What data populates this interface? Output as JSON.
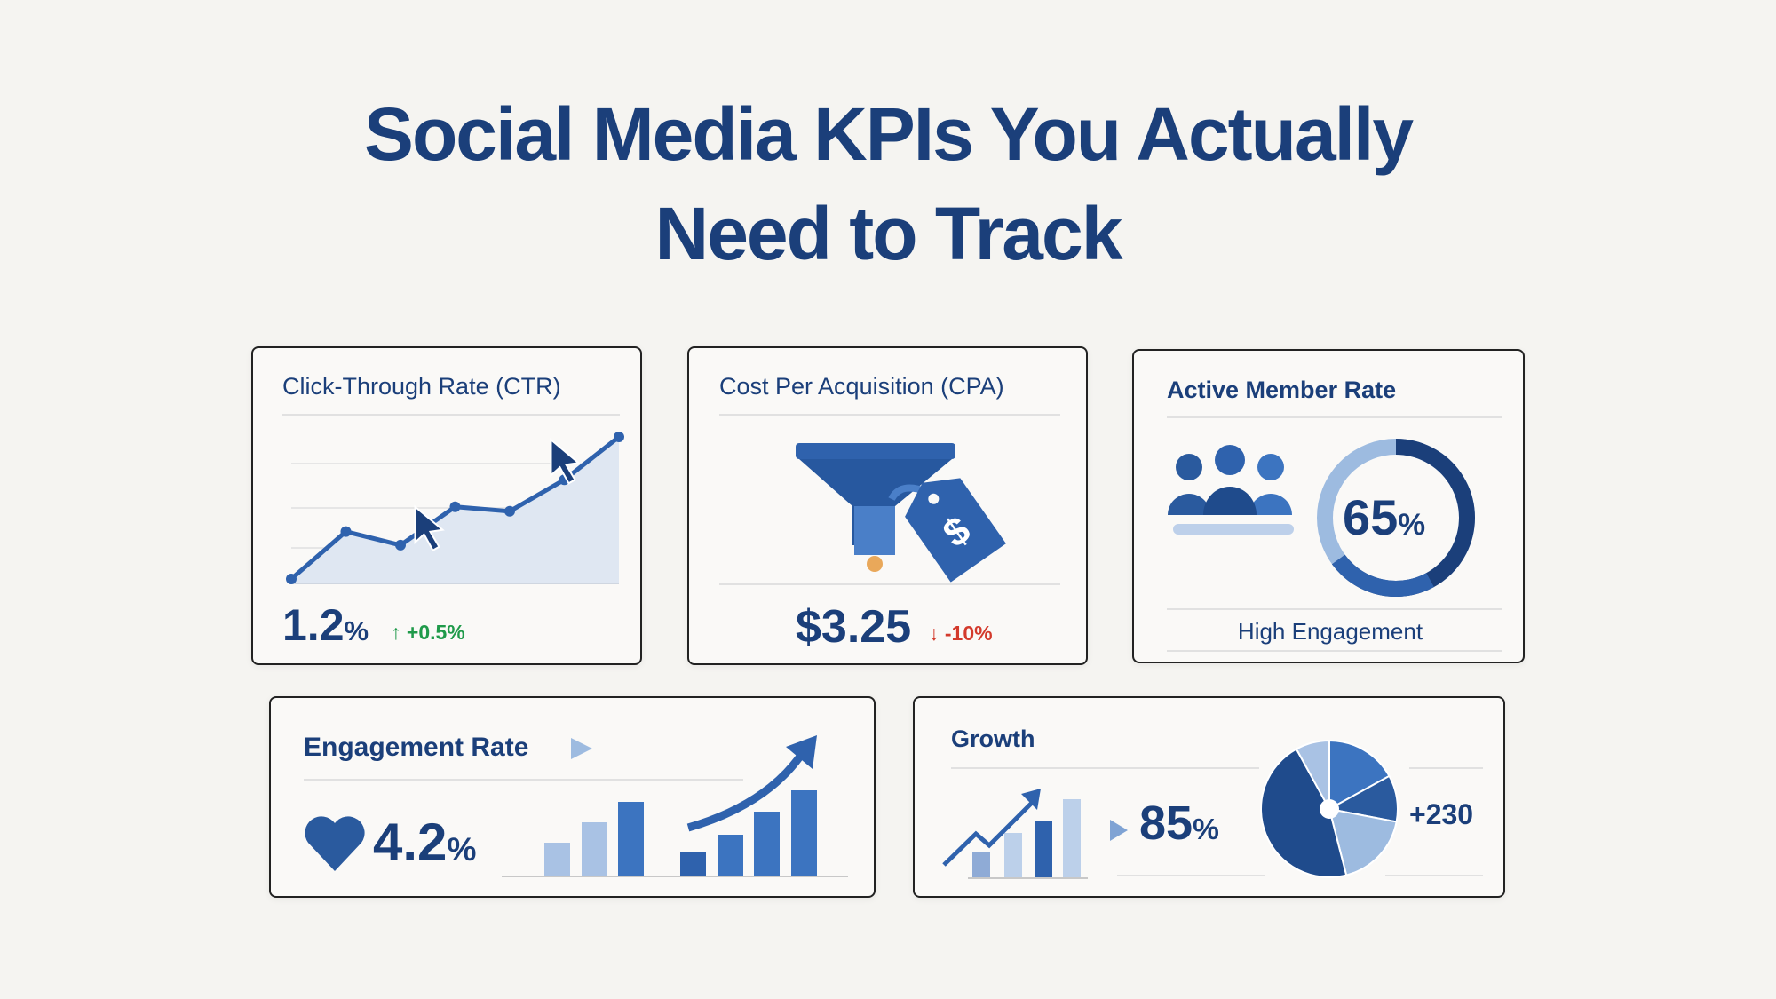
{
  "title": {
    "line1": "Social Media KPIs You Actually",
    "line2": "Need to Track"
  },
  "colors": {
    "navy": "#1b3f7a",
    "blue": "#2f62ad",
    "light": "#9dbbe0",
    "green": "#1f9a4a",
    "red": "#d33a2c"
  },
  "ctr": {
    "title": "Click-Through Rate (CTR)",
    "value": "1.2",
    "unit": "%",
    "change": "+0.5%",
    "trend": [
      0,
      21,
      15,
      32,
      30,
      44,
      63
    ],
    "arrow": "↑"
  },
  "cpa": {
    "title": "Cost Per Acquisition (CPA)",
    "value": "$3.25",
    "change": "-10%",
    "arrow": "↓",
    "tag_symbol": "$"
  },
  "active": {
    "title": "Active Member Rate",
    "value": "65",
    "unit": "%",
    "progress": 0.65,
    "label": "High Engagement"
  },
  "engagement": {
    "title": "Engagement Rate",
    "value": "4.2",
    "unit": "%",
    "bars": [
      37,
      60,
      83,
      27,
      46,
      72,
      96
    ]
  },
  "growth": {
    "title": "Growth",
    "value": "85",
    "unit": "%",
    "count": "+230",
    "bars": [
      28,
      50,
      63,
      88
    ],
    "pie_shares": [
      17,
      11,
      18,
      46,
      8
    ]
  }
}
